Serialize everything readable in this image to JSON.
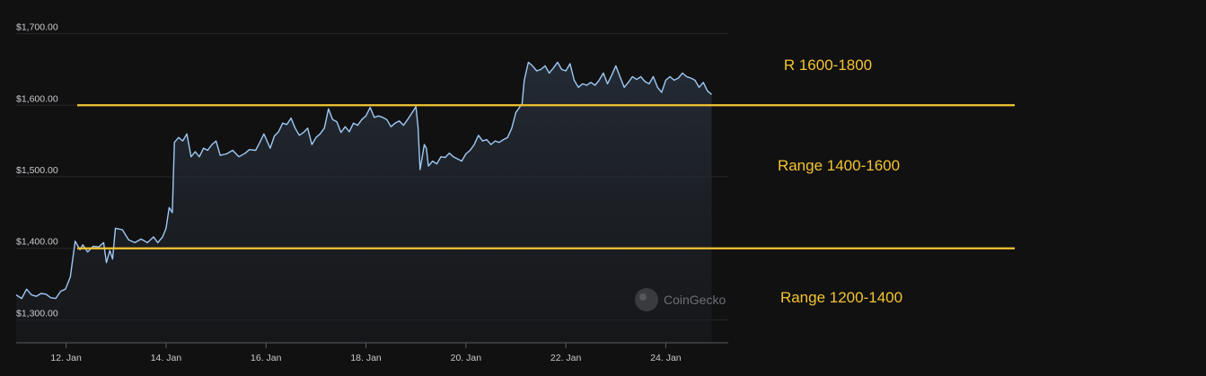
{
  "chart_data": {
    "type": "area",
    "currency_prefix": "$",
    "ylim": [
      1268,
      1722
    ],
    "y_ticks": [
      {
        "value": 1300,
        "label": "$1,300.00"
      },
      {
        "value": 1400,
        "label": "$1,400.00"
      },
      {
        "value": 1500,
        "label": "$1,500.00"
      },
      {
        "value": 1600,
        "label": "$1,600.00"
      },
      {
        "value": 1700,
        "label": "$1,700.00"
      }
    ],
    "xlim": [
      "2023-01-11T00:00",
      "2023-01-25T06:00"
    ],
    "x_ticks": [
      {
        "x": "2023-01-12T00:00",
        "label": "12. Jan"
      },
      {
        "x": "2023-01-14T00:00",
        "label": "14. Jan"
      },
      {
        "x": "2023-01-16T00:00",
        "label": "16. Jan"
      },
      {
        "x": "2023-01-18T00:00",
        "label": "18. Jan"
      },
      {
        "x": "2023-01-20T00:00",
        "label": "20. Jan"
      },
      {
        "x": "2023-01-22T00:00",
        "label": "22. Jan"
      },
      {
        "x": "2023-01-24T00:00",
        "label": "24. Jan"
      }
    ],
    "grid": true,
    "series": [
      {
        "points": [
          [
            "2023-01-11T00:00",
            1335
          ],
          [
            "2023-01-11T02:40",
            1330
          ],
          [
            "2023-01-11T05:00",
            1343
          ],
          [
            "2023-01-11T07:20",
            1335
          ],
          [
            "2023-01-11T09:40",
            1333
          ],
          [
            "2023-01-11T12:00",
            1337
          ],
          [
            "2023-01-11T14:20",
            1336
          ],
          [
            "2023-01-11T16:40",
            1331
          ],
          [
            "2023-01-11T19:00",
            1330
          ],
          [
            "2023-01-11T21:20",
            1340
          ],
          [
            "2023-01-11T23:40",
            1343
          ],
          [
            "2023-01-12T02:00",
            1360
          ],
          [
            "2023-01-12T04:20",
            1410
          ],
          [
            "2023-01-12T06:40",
            1398
          ],
          [
            "2023-01-12T08:00",
            1405
          ],
          [
            "2023-01-12T10:20",
            1395
          ],
          [
            "2023-01-12T13:00",
            1403
          ],
          [
            "2023-01-12T15:40",
            1402
          ],
          [
            "2023-01-12T18:00",
            1408
          ],
          [
            "2023-01-12T19:20",
            1380
          ],
          [
            "2023-01-12T21:00",
            1397
          ],
          [
            "2023-01-12T22:20",
            1385
          ],
          [
            "2023-01-12T23:40",
            1428
          ],
          [
            "2023-01-13T03:00",
            1426
          ],
          [
            "2023-01-13T06:00",
            1412
          ],
          [
            "2023-01-13T09:00",
            1408
          ],
          [
            "2023-01-13T12:00",
            1413
          ],
          [
            "2023-01-13T15:00",
            1408
          ],
          [
            "2023-01-13T18:00",
            1416
          ],
          [
            "2023-01-13T20:00",
            1408
          ],
          [
            "2023-01-13T22:20",
            1416
          ],
          [
            "2023-01-14T00:00",
            1428
          ],
          [
            "2023-01-14T01:30",
            1457
          ],
          [
            "2023-01-14T03:00",
            1450
          ],
          [
            "2023-01-14T04:00",
            1548
          ],
          [
            "2023-01-14T06:00",
            1555
          ],
          [
            "2023-01-14T08:00",
            1550
          ],
          [
            "2023-01-14T10:00",
            1560
          ],
          [
            "2023-01-14T12:00",
            1528
          ],
          [
            "2023-01-14T14:00",
            1535
          ],
          [
            "2023-01-14T16:00",
            1528
          ],
          [
            "2023-01-14T18:00",
            1540
          ],
          [
            "2023-01-14T20:00",
            1537
          ],
          [
            "2023-01-14T22:00",
            1545
          ],
          [
            "2023-01-15T00:00",
            1550
          ],
          [
            "2023-01-15T02:00",
            1530
          ],
          [
            "2023-01-15T05:00",
            1532
          ],
          [
            "2023-01-15T08:00",
            1537
          ],
          [
            "2023-01-15T11:00",
            1528
          ],
          [
            "2023-01-15T14:00",
            1533
          ],
          [
            "2023-01-15T16:00",
            1538
          ],
          [
            "2023-01-15T19:00",
            1537
          ],
          [
            "2023-01-15T21:00",
            1548
          ],
          [
            "2023-01-15T23:00",
            1560
          ],
          [
            "2023-01-16T02:00",
            1540
          ],
          [
            "2023-01-16T04:00",
            1557
          ],
          [
            "2023-01-16T06:00",
            1563
          ],
          [
            "2023-01-16T08:00",
            1575
          ],
          [
            "2023-01-16T10:00",
            1573
          ],
          [
            "2023-01-16T12:00",
            1582
          ],
          [
            "2023-01-16T14:00",
            1568
          ],
          [
            "2023-01-16T16:00",
            1558
          ],
          [
            "2023-01-16T18:00",
            1562
          ],
          [
            "2023-01-16T20:00",
            1568
          ],
          [
            "2023-01-16T22:00",
            1545
          ],
          [
            "2023-01-17T00:00",
            1555
          ],
          [
            "2023-01-17T02:00",
            1560
          ],
          [
            "2023-01-17T04:00",
            1568
          ],
          [
            "2023-01-17T06:00",
            1595
          ],
          [
            "2023-01-17T08:00",
            1580
          ],
          [
            "2023-01-17T10:00",
            1577
          ],
          [
            "2023-01-17T12:00",
            1562
          ],
          [
            "2023-01-17T14:00",
            1570
          ],
          [
            "2023-01-17T16:00",
            1563
          ],
          [
            "2023-01-17T18:00",
            1575
          ],
          [
            "2023-01-17T20:00",
            1572
          ],
          [
            "2023-01-17T22:00",
            1580
          ],
          [
            "2023-01-18T00:00",
            1585
          ],
          [
            "2023-01-18T02:00",
            1597
          ],
          [
            "2023-01-18T04:00",
            1583
          ],
          [
            "2023-01-18T06:00",
            1585
          ],
          [
            "2023-01-18T08:00",
            1583
          ],
          [
            "2023-01-18T10:00",
            1580
          ],
          [
            "2023-01-18T12:00",
            1570
          ],
          [
            "2023-01-18T14:00",
            1575
          ],
          [
            "2023-01-18T16:00",
            1578
          ],
          [
            "2023-01-18T18:00",
            1572
          ],
          [
            "2023-01-18T20:00",
            1580
          ],
          [
            "2023-01-19T00:00",
            1598
          ],
          [
            "2023-01-19T01:00",
            1570
          ],
          [
            "2023-01-19T02:00",
            1510
          ],
          [
            "2023-01-19T04:00",
            1545
          ],
          [
            "2023-01-19T05:00",
            1540
          ],
          [
            "2023-01-19T06:00",
            1515
          ],
          [
            "2023-01-19T08:00",
            1522
          ],
          [
            "2023-01-19T10:00",
            1518
          ],
          [
            "2023-01-19T12:00",
            1528
          ],
          [
            "2023-01-19T14:00",
            1527
          ],
          [
            "2023-01-19T16:00",
            1533
          ],
          [
            "2023-01-19T18:00",
            1528
          ],
          [
            "2023-01-19T20:00",
            1525
          ],
          [
            "2023-01-19T22:00",
            1522
          ],
          [
            "2023-01-20T00:00",
            1532
          ],
          [
            "2023-01-20T02:00",
            1537
          ],
          [
            "2023-01-20T04:00",
            1545
          ],
          [
            "2023-01-20T06:00",
            1558
          ],
          [
            "2023-01-20T08:00",
            1550
          ],
          [
            "2023-01-20T10:00",
            1552
          ],
          [
            "2023-01-20T12:00",
            1545
          ],
          [
            "2023-01-20T14:00",
            1550
          ],
          [
            "2023-01-20T16:00",
            1548
          ],
          [
            "2023-01-20T18:00",
            1552
          ],
          [
            "2023-01-20T20:00",
            1555
          ],
          [
            "2023-01-20T22:00",
            1568
          ],
          [
            "2023-01-21T00:00",
            1590
          ],
          [
            "2023-01-21T02:00",
            1598
          ],
          [
            "2023-01-21T03:00",
            1602
          ],
          [
            "2023-01-21T04:00",
            1635
          ],
          [
            "2023-01-21T06:00",
            1660
          ],
          [
            "2023-01-21T08:00",
            1655
          ],
          [
            "2023-01-21T10:00",
            1648
          ],
          [
            "2023-01-21T12:00",
            1650
          ],
          [
            "2023-01-21T14:00",
            1655
          ],
          [
            "2023-01-21T16:00",
            1645
          ],
          [
            "2023-01-21T18:00",
            1652
          ],
          [
            "2023-01-21T20:00",
            1660
          ],
          [
            "2023-01-21T22:00",
            1650
          ],
          [
            "2023-01-22T00:00",
            1648
          ],
          [
            "2023-01-22T02:00",
            1658
          ],
          [
            "2023-01-22T04:00",
            1635
          ],
          [
            "2023-01-22T06:00",
            1625
          ],
          [
            "2023-01-22T08:00",
            1630
          ],
          [
            "2023-01-22T10:00",
            1628
          ],
          [
            "2023-01-22T12:00",
            1632
          ],
          [
            "2023-01-22T14:00",
            1628
          ],
          [
            "2023-01-22T16:00",
            1635
          ],
          [
            "2023-01-22T18:00",
            1645
          ],
          [
            "2023-01-22T20:00",
            1630
          ],
          [
            "2023-01-22T22:00",
            1642
          ],
          [
            "2023-01-23T00:00",
            1655
          ],
          [
            "2023-01-23T02:00",
            1640
          ],
          [
            "2023-01-23T04:00",
            1625
          ],
          [
            "2023-01-23T06:00",
            1632
          ],
          [
            "2023-01-23T08:00",
            1640
          ],
          [
            "2023-01-23T10:00",
            1636
          ],
          [
            "2023-01-23T12:00",
            1640
          ],
          [
            "2023-01-23T14:00",
            1633
          ],
          [
            "2023-01-23T16:00",
            1630
          ],
          [
            "2023-01-23T18:00",
            1640
          ],
          [
            "2023-01-23T20:00",
            1625
          ],
          [
            "2023-01-23T22:00",
            1618
          ],
          [
            "2023-01-24T00:00",
            1635
          ],
          [
            "2023-01-24T02:00",
            1640
          ],
          [
            "2023-01-24T04:00",
            1635
          ],
          [
            "2023-01-24T06:00",
            1638
          ],
          [
            "2023-01-24T08:00",
            1645
          ],
          [
            "2023-01-24T10:00",
            1640
          ],
          [
            "2023-01-24T12:00",
            1638
          ],
          [
            "2023-01-24T14:00",
            1635
          ],
          [
            "2023-01-24T16:00",
            1625
          ],
          [
            "2023-01-24T18:00",
            1632
          ],
          [
            "2023-01-24T20:00",
            1620
          ],
          [
            "2023-01-24T22:00",
            1615
          ]
        ]
      }
    ],
    "annotations": {
      "lines": [
        {
          "value": 1600,
          "color": "#f4c430"
        },
        {
          "value": 1400,
          "color": "#f4c430"
        }
      ],
      "labels": [
        {
          "text": "R 1600-1800",
          "color": "#f4c430"
        },
        {
          "text": "Range 1400-1600",
          "color": "#f4c430"
        },
        {
          "text": "Range 1200-1400",
          "color": "#f4c430"
        }
      ]
    },
    "colors": {
      "line": "#9ec9f4",
      "grid": "#26272a",
      "background": "#111112",
      "annotation": "#f4c430"
    },
    "watermark": {
      "text": "CoinGecko"
    }
  }
}
